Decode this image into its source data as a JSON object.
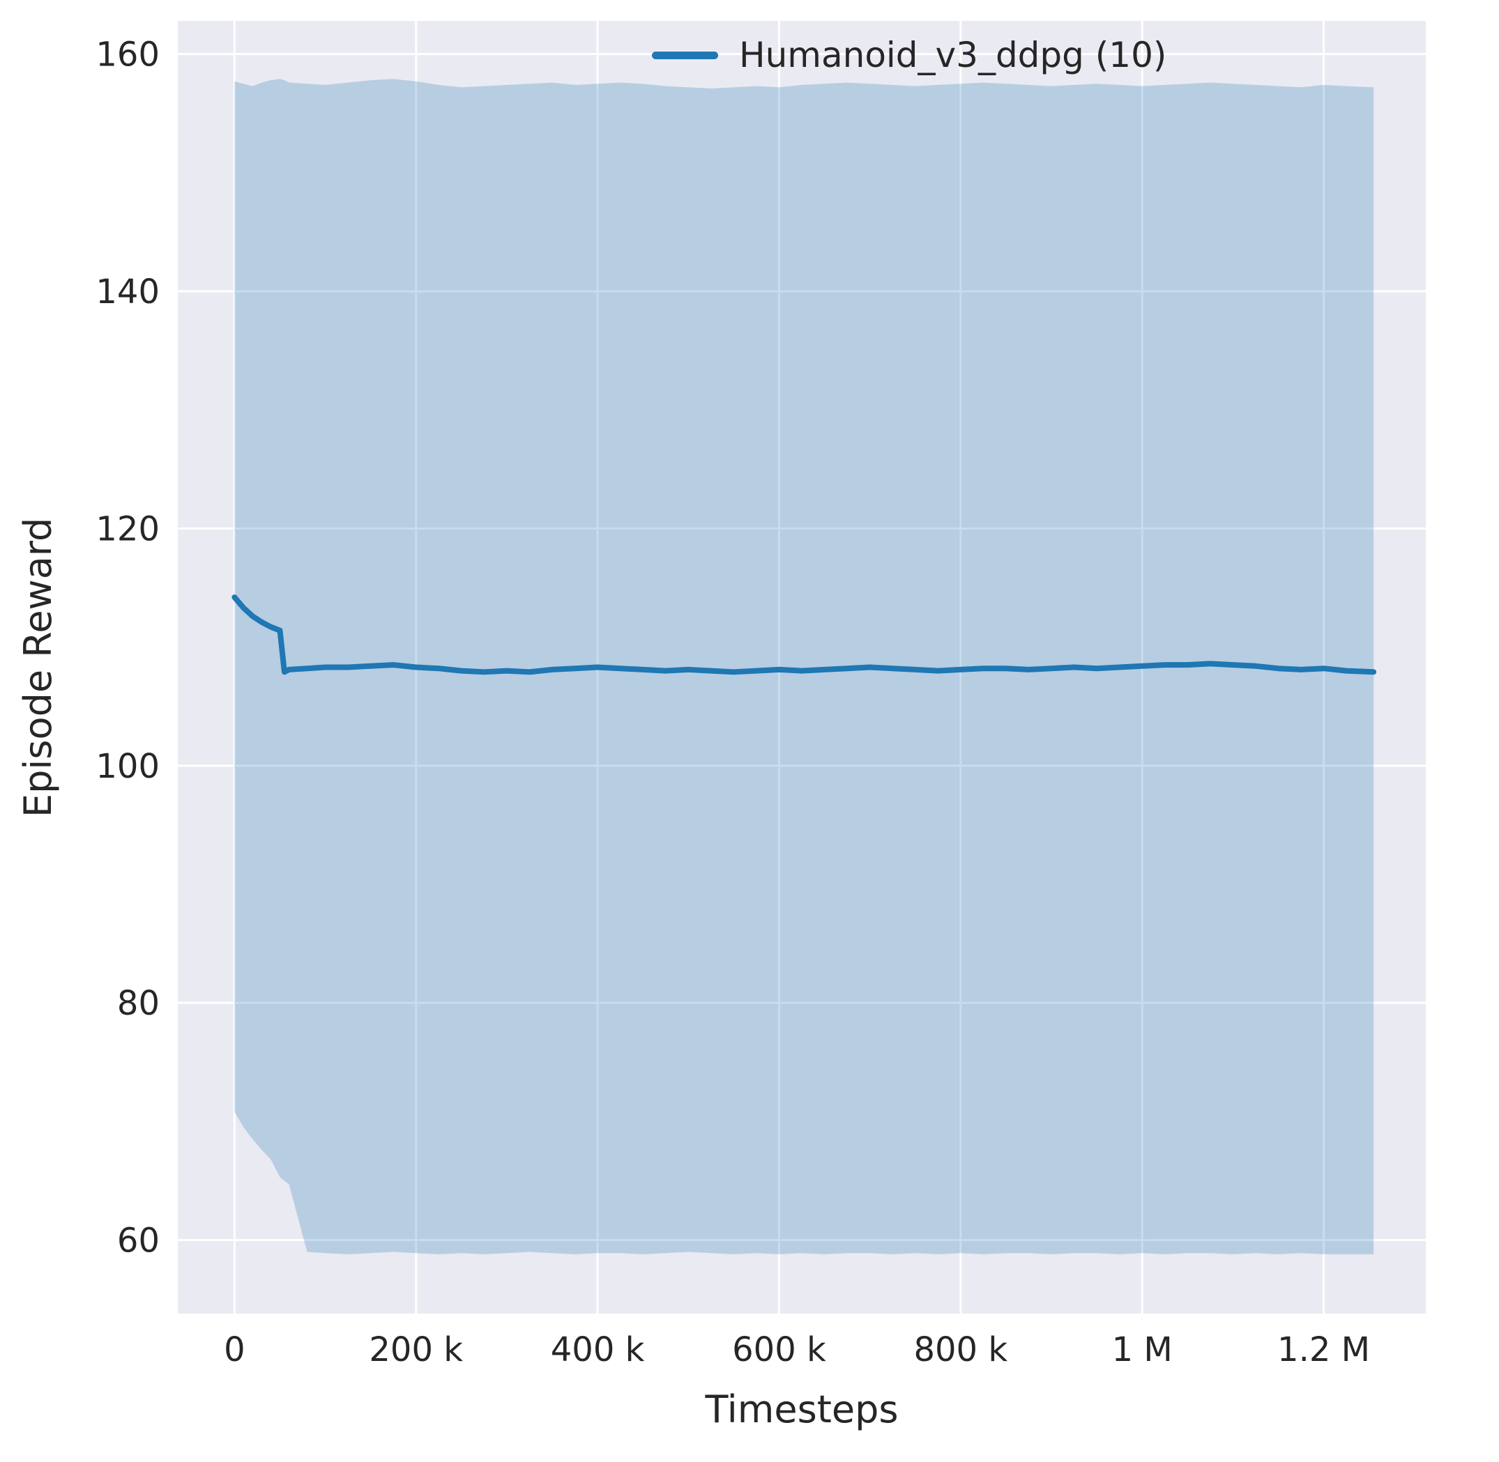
{
  "chart_data": {
    "type": "line",
    "title": "",
    "xlabel": "Timesteps",
    "ylabel": "Episode Reward",
    "legend_position": "upper right",
    "grid": true,
    "xlim": [
      -62500,
      1312500
    ],
    "ylim": [
      53.8,
      162.8
    ],
    "xticks": {
      "values": [
        0,
        200000,
        400000,
        600000,
        800000,
        1000000,
        1200000
      ],
      "labels": [
        "0",
        "200 k",
        "400 k",
        "600 k",
        "800 k",
        "1 M",
        "1.2 M"
      ]
    },
    "yticks": {
      "values": [
        60,
        80,
        100,
        120,
        140,
        160
      ],
      "labels": [
        "60",
        "80",
        "100",
        "120",
        "140",
        "160"
      ]
    },
    "colors": {
      "axes_background": "#eaeaf2",
      "grid": "#ffffff",
      "text": "#262626",
      "band_opacity": 0.25
    },
    "series": [
      {
        "name": "Humanoid_v3_ddpg (10)",
        "color": "#1f77b4",
        "x": [
          0,
          10000,
          20000,
          30000,
          40000,
          50000,
          55000,
          60000,
          80000,
          100000,
          125000,
          150000,
          175000,
          200000,
          225000,
          250000,
          275000,
          300000,
          325000,
          350000,
          375000,
          400000,
          425000,
          450000,
          475000,
          500000,
          525000,
          550000,
          575000,
          600000,
          625000,
          650000,
          675000,
          700000,
          725000,
          750000,
          775000,
          800000,
          825000,
          850000,
          875000,
          900000,
          925000,
          950000,
          975000,
          1000000,
          1025000,
          1050000,
          1075000,
          1100000,
          1125000,
          1150000,
          1175000,
          1200000,
          1225000,
          1255000
        ],
        "mean": [
          114.2,
          113.3,
          112.6,
          112.1,
          111.7,
          111.4,
          107.9,
          108.1,
          108.2,
          108.3,
          108.3,
          108.4,
          108.5,
          108.3,
          108.2,
          108.0,
          107.9,
          108.0,
          107.9,
          108.1,
          108.2,
          108.3,
          108.2,
          108.1,
          108.0,
          108.1,
          108.0,
          107.9,
          108.0,
          108.1,
          108.0,
          108.1,
          108.2,
          108.3,
          108.2,
          108.1,
          108.0,
          108.1,
          108.2,
          108.2,
          108.1,
          108.2,
          108.3,
          108.2,
          108.3,
          108.4,
          108.5,
          108.5,
          108.6,
          108.5,
          108.4,
          108.2,
          108.1,
          108.2,
          108.0,
          107.9
        ],
        "band_upper": [
          157.7,
          157.5,
          157.3,
          157.6,
          157.8,
          157.9,
          157.8,
          157.6,
          157.5,
          157.4,
          157.6,
          157.8,
          157.9,
          157.7,
          157.4,
          157.2,
          157.3,
          157.4,
          157.5,
          157.6,
          157.4,
          157.5,
          157.6,
          157.5,
          157.3,
          157.2,
          157.1,
          157.2,
          157.3,
          157.2,
          157.4,
          157.5,
          157.6,
          157.5,
          157.4,
          157.3,
          157.4,
          157.5,
          157.6,
          157.5,
          157.4,
          157.3,
          157.4,
          157.5,
          157.4,
          157.3,
          157.4,
          157.5,
          157.6,
          157.5,
          157.4,
          157.3,
          157.2,
          157.4,
          157.3,
          157.2
        ],
        "band_lower": [
          70.8,
          69.5,
          68.5,
          67.6,
          66.8,
          65.3,
          65.0,
          64.7,
          59.0,
          58.9,
          58.8,
          58.9,
          59.0,
          58.9,
          58.8,
          58.9,
          58.8,
          58.9,
          59.0,
          58.9,
          58.8,
          58.9,
          58.9,
          58.8,
          58.9,
          59.0,
          58.9,
          58.8,
          58.9,
          58.8,
          58.9,
          58.8,
          58.9,
          58.9,
          58.8,
          58.9,
          58.8,
          58.9,
          58.8,
          58.9,
          58.9,
          58.8,
          58.9,
          58.9,
          58.8,
          58.9,
          58.8,
          58.9,
          58.9,
          58.8,
          58.9,
          58.8,
          58.9,
          58.8,
          58.8,
          58.8
        ]
      }
    ]
  }
}
